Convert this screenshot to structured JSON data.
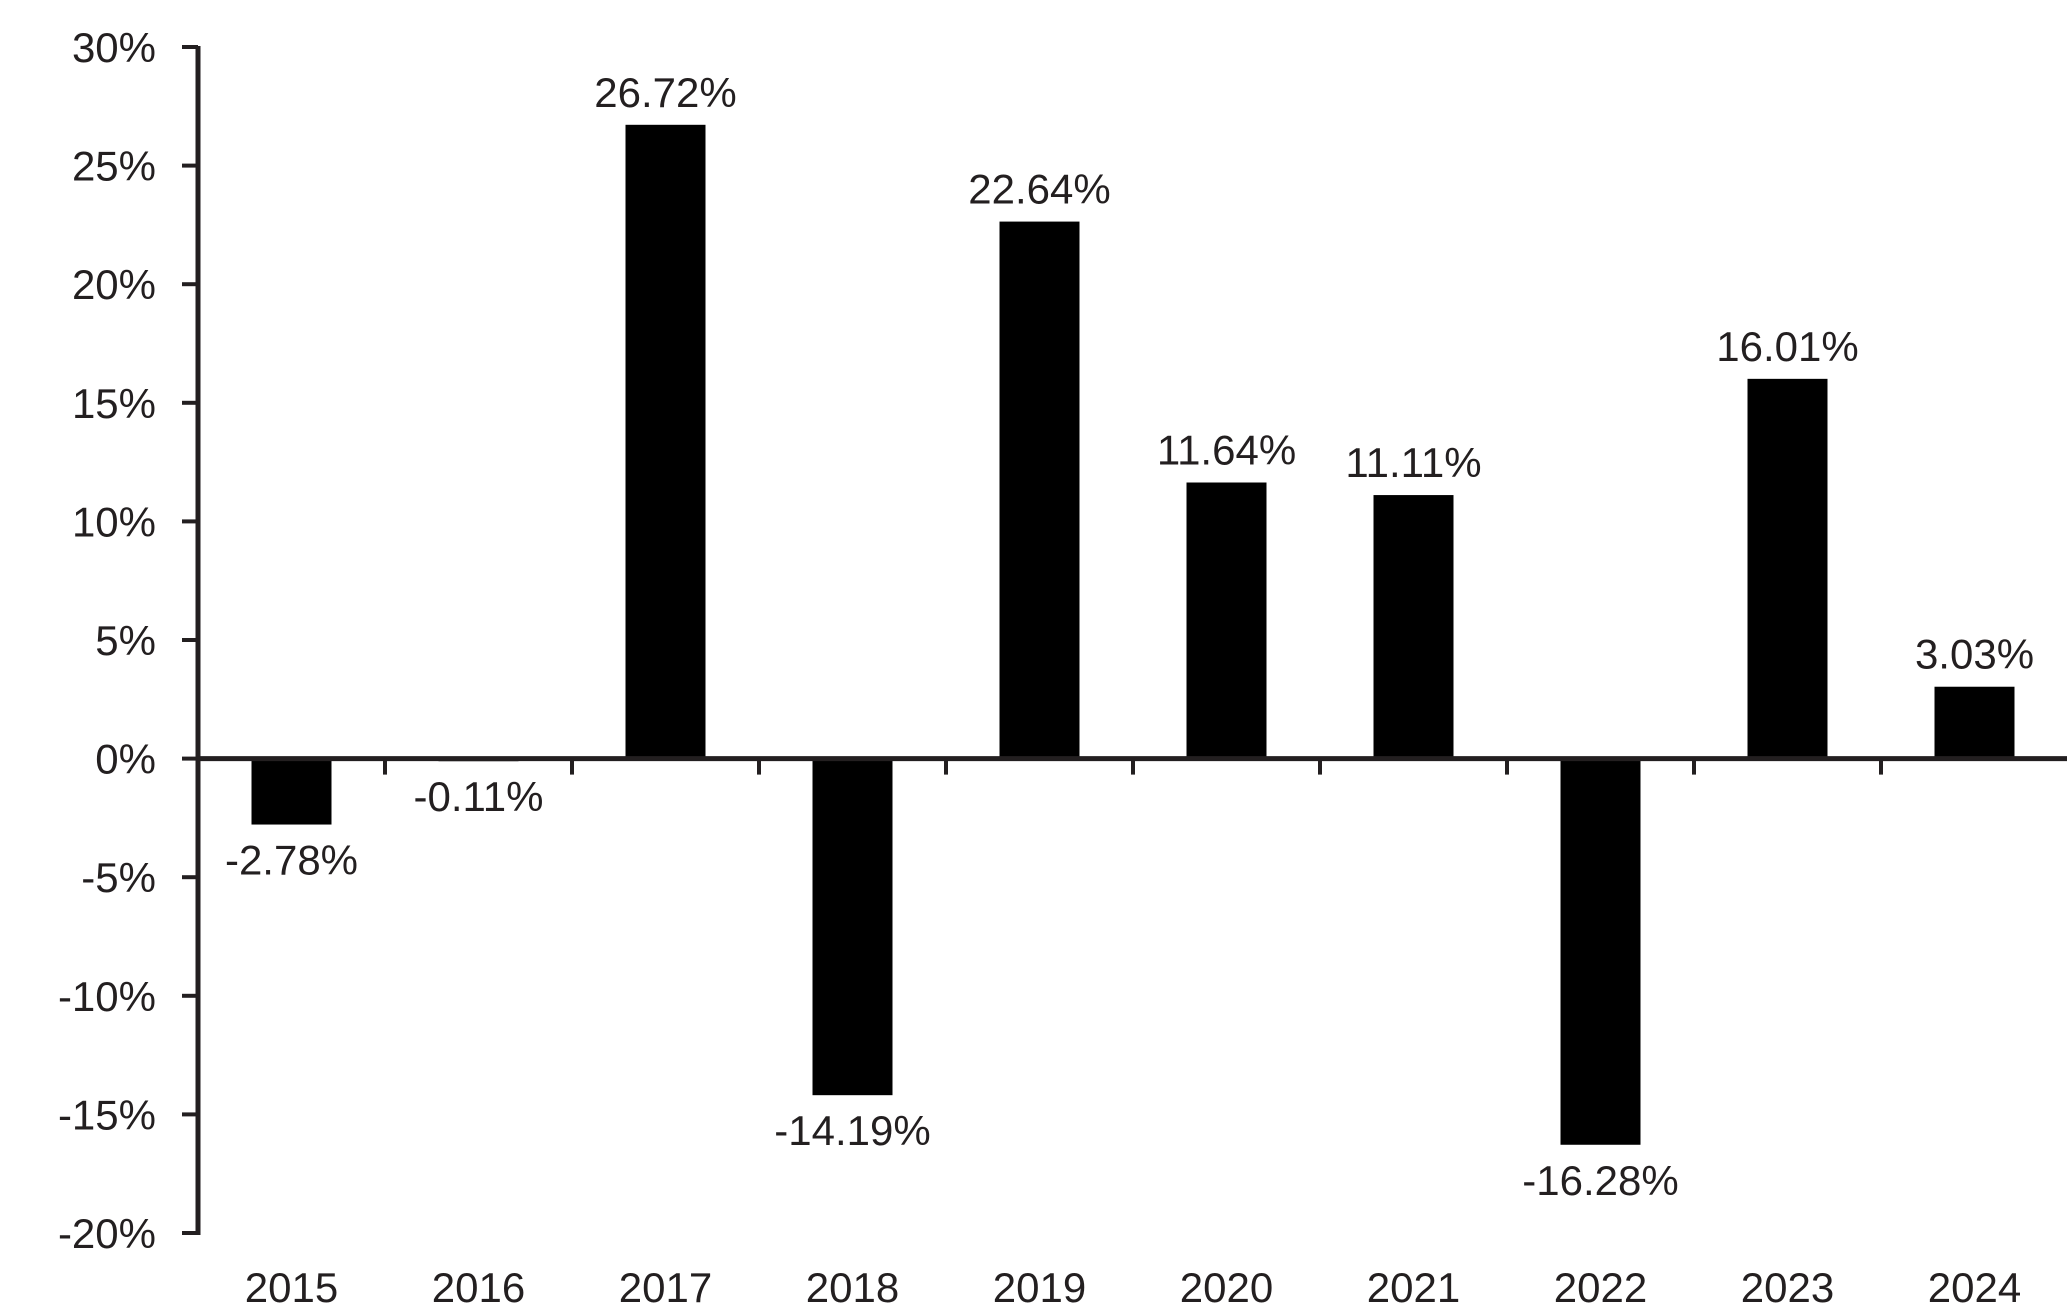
{
  "chart_data": {
    "type": "bar",
    "categories": [
      "2015",
      "2016",
      "2017",
      "2018",
      "2019",
      "2020",
      "2021",
      "2022",
      "2023",
      "2024"
    ],
    "values": [
      -2.78,
      -0.11,
      26.72,
      -14.19,
      22.64,
      11.64,
      11.11,
      -16.28,
      16.01,
      3.03
    ],
    "data_labels": [
      "-2.78%",
      "-0.11%",
      "26.72%",
      "-14.19%",
      "22.64%",
      "11.64%",
      "11.11%",
      "-16.28%",
      "16.01%",
      "3.03%"
    ],
    "ylim": [
      -20,
      30
    ],
    "yticks": [
      30,
      25,
      20,
      15,
      10,
      5,
      0,
      -5,
      -10,
      -15,
      -20
    ],
    "ytick_labels": [
      "30%",
      "25%",
      "20%",
      "15%",
      "10%",
      "5%",
      "0%",
      "-5%",
      "-10%",
      "-15%",
      "-20%"
    ],
    "title": "",
    "xlabel": "",
    "ylabel": "",
    "grid": false,
    "legend": "none",
    "bar_color": "#000000",
    "axis_color": "#231f20"
  }
}
